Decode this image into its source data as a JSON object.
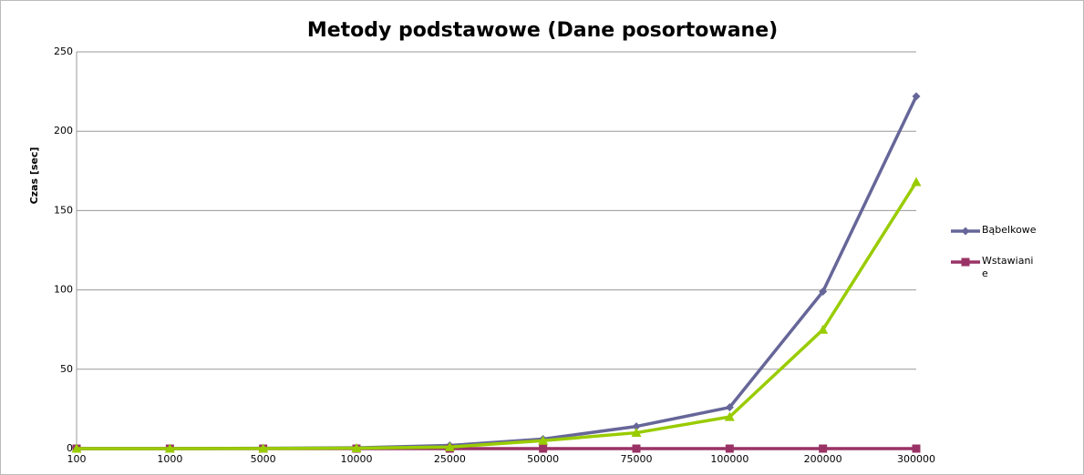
{
  "chart_data": {
    "type": "line",
    "title": "Metody podstawowe (Dane posortowane)",
    "y_label": "Czas [sec]",
    "categories": [
      "100",
      "1000",
      "5000",
      "10000",
      "25000",
      "50000",
      "75000",
      "100000",
      "200000",
      "300000"
    ],
    "series": [
      {
        "name": "Bąbelkowe",
        "color": "#666699",
        "marker": "diamond",
        "values": [
          0,
          0,
          0.2,
          0.5,
          2,
          6,
          14,
          26,
          99,
          222
        ]
      },
      {
        "name": "Wstawianie",
        "color": "#993366",
        "marker": "square",
        "values": [
          0,
          0,
          0,
          0,
          0,
          0,
          0,
          0,
          0,
          0
        ]
      },
      {
        "color": "#99cc00",
        "marker": "triangle",
        "values": [
          0,
          0,
          0.1,
          0.3,
          1,
          5,
          10,
          20,
          75,
          168
        ]
      }
    ],
    "ylim": [
      0,
      250
    ],
    "yticks": [
      0,
      50,
      100,
      150,
      200,
      250
    ],
    "grid": true,
    "legend": "right"
  }
}
